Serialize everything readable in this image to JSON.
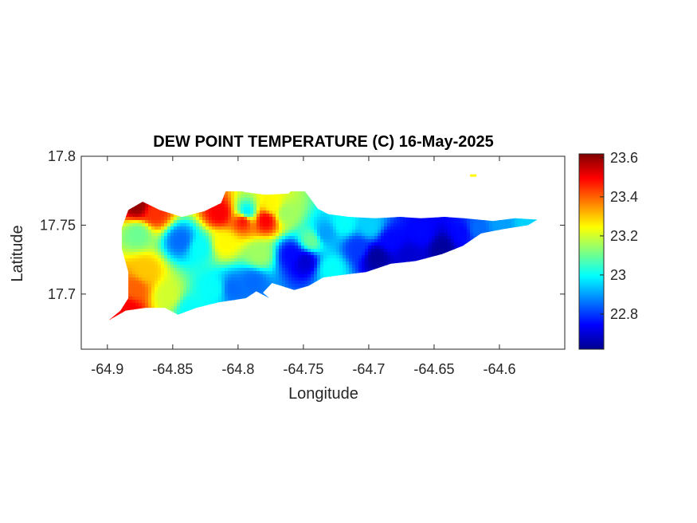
{
  "chart_data": {
    "type": "heatmap",
    "title": "DEW POINT TEMPERATURE (C) 16-May-2025",
    "xlabel": "Longitude",
    "ylabel": "Latitude",
    "xlim": [
      -64.92,
      -64.55
    ],
    "ylim": [
      17.66,
      17.8
    ],
    "x_ticks": [
      -64.9,
      -64.85,
      -64.8,
      -64.75,
      -64.7,
      -64.65,
      -64.6
    ],
    "x_tick_labels": [
      "-64.9",
      "-64.85",
      "-64.8",
      "-64.75",
      "-64.7",
      "-64.65",
      "-64.6"
    ],
    "y_ticks": [
      17.7,
      17.75,
      17.8
    ],
    "y_tick_labels": [
      "17.7",
      "17.75",
      "17.8"
    ],
    "colorbar": {
      "min": 22.62,
      "max": 23.62,
      "ticks": [
        22.8,
        23,
        23.2,
        23.4,
        23.6
      ],
      "tick_labels": [
        "22.8",
        "23",
        "23.2",
        "23.4",
        "23.6"
      ],
      "colormap": "jet"
    },
    "island_outline": [
      [
        -64.899,
        17.681
      ],
      [
        -64.89,
        17.688
      ],
      [
        -64.884,
        17.697
      ],
      [
        -64.884,
        17.716
      ],
      [
        -64.889,
        17.733
      ],
      [
        -64.889,
        17.748
      ],
      [
        -64.884,
        17.761
      ],
      [
        -64.873,
        17.767
      ],
      [
        -64.86,
        17.761
      ],
      [
        -64.843,
        17.756
      ],
      [
        -64.826,
        17.76
      ],
      [
        -64.813,
        17.766
      ],
      [
        -64.808,
        17.778
      ],
      [
        -64.795,
        17.774
      ],
      [
        -64.779,
        17.772
      ],
      [
        -64.761,
        17.773
      ],
      [
        -64.755,
        17.782
      ],
      [
        -64.746,
        17.771
      ],
      [
        -64.739,
        17.762
      ],
      [
        -64.731,
        17.758
      ],
      [
        -64.715,
        17.756
      ],
      [
        -64.695,
        17.755
      ],
      [
        -64.676,
        17.756
      ],
      [
        -64.66,
        17.755
      ],
      [
        -64.642,
        17.756
      ],
      [
        -64.627,
        17.755
      ],
      [
        -64.605,
        17.753
      ],
      [
        -64.588,
        17.755
      ],
      [
        -64.571,
        17.754
      ],
      [
        -64.578,
        17.75
      ],
      [
        -64.598,
        17.747
      ],
      [
        -64.614,
        17.744
      ],
      [
        -64.628,
        17.735
      ],
      [
        -64.644,
        17.729
      ],
      [
        -64.664,
        17.724
      ],
      [
        -64.683,
        17.722
      ],
      [
        -64.702,
        17.716
      ],
      [
        -64.72,
        17.714
      ],
      [
        -64.735,
        17.712
      ],
      [
        -64.746,
        17.706
      ],
      [
        -64.757,
        17.703
      ],
      [
        -64.767,
        17.706
      ],
      [
        -64.774,
        17.708
      ],
      [
        -64.778,
        17.704
      ],
      [
        -64.781,
        17.701
      ],
      [
        -64.776,
        17.697
      ],
      [
        -64.786,
        17.702
      ],
      [
        -64.794,
        17.697
      ],
      [
        -64.815,
        17.694
      ],
      [
        -64.832,
        17.69
      ],
      [
        -64.846,
        17.685
      ],
      [
        -64.856,
        17.69
      ],
      [
        -64.871,
        17.69
      ],
      [
        -64.886,
        17.688
      ]
    ],
    "stations": [
      [
        -64.885,
        17.69,
        23.5
      ],
      [
        -64.878,
        17.765,
        23.6
      ],
      [
        -64.865,
        17.76,
        23.45
      ],
      [
        -64.878,
        17.745,
        23.1
      ],
      [
        -64.872,
        17.718,
        23.3
      ],
      [
        -64.88,
        17.705,
        23.4
      ],
      [
        -64.845,
        17.74,
        22.85
      ],
      [
        -64.855,
        17.7,
        23.2
      ],
      [
        -64.838,
        17.69,
        23.0
      ],
      [
        -64.83,
        17.735,
        23.0
      ],
      [
        -64.82,
        17.705,
        23.0
      ],
      [
        -64.805,
        17.705,
        22.85
      ],
      [
        -64.812,
        17.738,
        23.25
      ],
      [
        -64.815,
        17.76,
        23.5
      ],
      [
        -64.795,
        17.76,
        22.95
      ],
      [
        -64.797,
        17.755,
        23.5
      ],
      [
        -64.78,
        17.755,
        23.5
      ],
      [
        -64.775,
        17.765,
        23.25
      ],
      [
        -64.785,
        17.73,
        23.15
      ],
      [
        -64.79,
        17.71,
        22.85
      ],
      [
        -64.76,
        17.73,
        22.75
      ],
      [
        -64.765,
        17.76,
        23.15
      ],
      [
        -64.745,
        17.74,
        23.1
      ],
      [
        -64.75,
        17.725,
        22.7
      ],
      [
        -64.73,
        17.72,
        23.0
      ],
      [
        -64.735,
        17.745,
        22.9
      ],
      [
        -64.71,
        17.735,
        22.8
      ],
      [
        -64.695,
        17.728,
        22.65
      ],
      [
        -64.685,
        17.74,
        22.75
      ],
      [
        -64.67,
        17.728,
        22.7
      ],
      [
        -64.66,
        17.745,
        22.75
      ],
      [
        -64.645,
        17.735,
        22.65
      ],
      [
        -64.63,
        17.745,
        22.75
      ],
      [
        -64.618,
        17.748,
        22.85
      ],
      [
        -64.6,
        17.752,
        22.9
      ],
      [
        -64.58,
        17.753,
        22.95
      ],
      [
        -64.72,
        17.752,
        23.0
      ],
      [
        -64.7,
        17.75,
        22.95
      ]
    ],
    "islet_point": [
      -64.62,
      17.786,
      23.25
    ]
  }
}
